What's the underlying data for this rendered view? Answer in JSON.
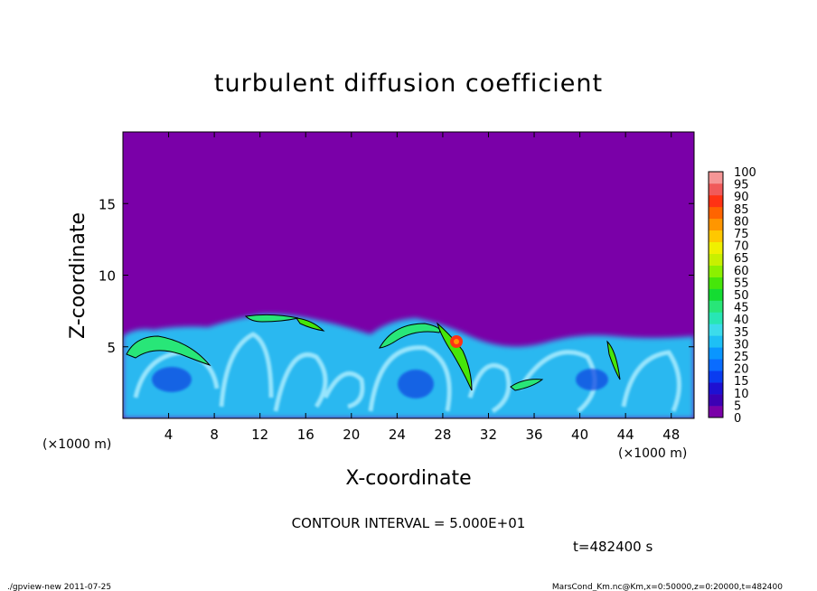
{
  "chart_data": {
    "type": "heatmap",
    "title": "turbulent diffusion coefficient",
    "xlabel": "X-coordinate",
    "ylabel": "Z-coordinate",
    "x_unit_label": "(×1000 m)",
    "y_unit_label": "(×1000 m)",
    "xlim": [
      0,
      50
    ],
    "ylim": [
      0,
      20
    ],
    "x_ticks": [
      4,
      8,
      12,
      16,
      20,
      24,
      28,
      32,
      36,
      40,
      44,
      48
    ],
    "y_ticks": [
      5,
      10,
      15
    ],
    "colorbar_levels": [
      0,
      5,
      10,
      15,
      20,
      25,
      30,
      35,
      40,
      45,
      50,
      55,
      60,
      65,
      70,
      75,
      80,
      85,
      90,
      95,
      100
    ],
    "colorbar_colors": [
      "#7a00a8",
      "#3c00b4",
      "#1e10d2",
      "#0a3cf0",
      "#0a6cff",
      "#0a96ff",
      "#1ec0f5",
      "#3cdceb",
      "#28e6b4",
      "#28e678",
      "#14dc32",
      "#46e60a",
      "#8cf000",
      "#c8f000",
      "#f0f000",
      "#ffc800",
      "#ff9600",
      "#ff6400",
      "#ff3214",
      "#f05a5a",
      "#f59696"
    ],
    "background_value": 0,
    "contour_level": 50,
    "contour_interval_text": "CONTOUR INTERVAL = 5.000E+01",
    "regions": [
      {
        "name": "convective boundary layer",
        "x_range": [
          0,
          50
        ],
        "top_z": [
          5.2,
          6.2
        ],
        "typical_value": [
          10,
          40
        ]
      },
      {
        "name": "updraft core",
        "x": 29.5,
        "z": 5.3,
        "value": 90
      },
      {
        "name": "eddy",
        "x": 3,
        "z": 4.5,
        "value": 55
      },
      {
        "name": "eddy",
        "x": 14,
        "z": 6.8,
        "value": 55
      },
      {
        "name": "eddy",
        "x": 17,
        "z": 6.6,
        "value": 55
      },
      {
        "name": "eddy",
        "x": 24,
        "z": 5.8,
        "value": 55
      },
      {
        "name": "eddy",
        "x": 36,
        "z": 2.4,
        "value": 50
      },
      {
        "name": "eddy",
        "x": 43.5,
        "z": 4.5,
        "value": 55
      }
    ]
  },
  "annotations": {
    "time": "t=482400 s",
    "footer_left": "./gpview-new  2011-07-25",
    "footer_right": "MarsCond_Km.nc@Km,x=0:50000,z=0:20000,t=482400"
  }
}
